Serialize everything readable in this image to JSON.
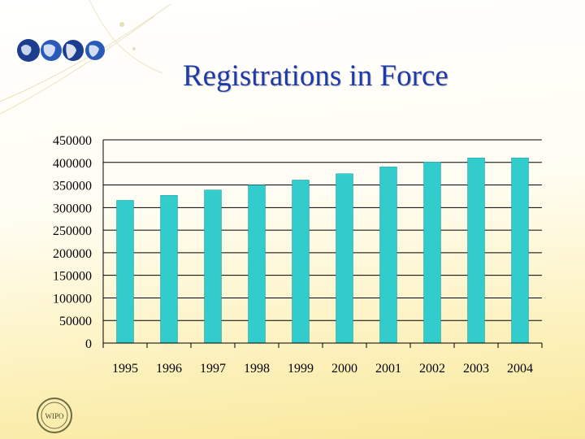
{
  "title": "Registrations in Force",
  "logo_text": "WIPO",
  "colors": {
    "bar": "#33cccc",
    "title": "#1f39a8",
    "grid": "#000000"
  },
  "icons": [
    "globe-icon",
    "globe-icon",
    "globe-icon",
    "globe-icon",
    "wipo-seal-icon"
  ],
  "chart_data": {
    "type": "bar",
    "categories": [
      "1995",
      "1996",
      "1997",
      "1998",
      "1999",
      "2000",
      "2001",
      "2002",
      "2003",
      "2004"
    ],
    "values": [
      316000,
      327000,
      339000,
      350000,
      361000,
      375000,
      390000,
      401000,
      410000,
      410000
    ],
    "title": "",
    "xlabel": "",
    "ylabel": "",
    "ylim": [
      0,
      450000
    ],
    "yticks": [
      0,
      50000,
      100000,
      150000,
      200000,
      250000,
      300000,
      350000,
      400000,
      450000
    ],
    "grid": true,
    "legend": false
  }
}
